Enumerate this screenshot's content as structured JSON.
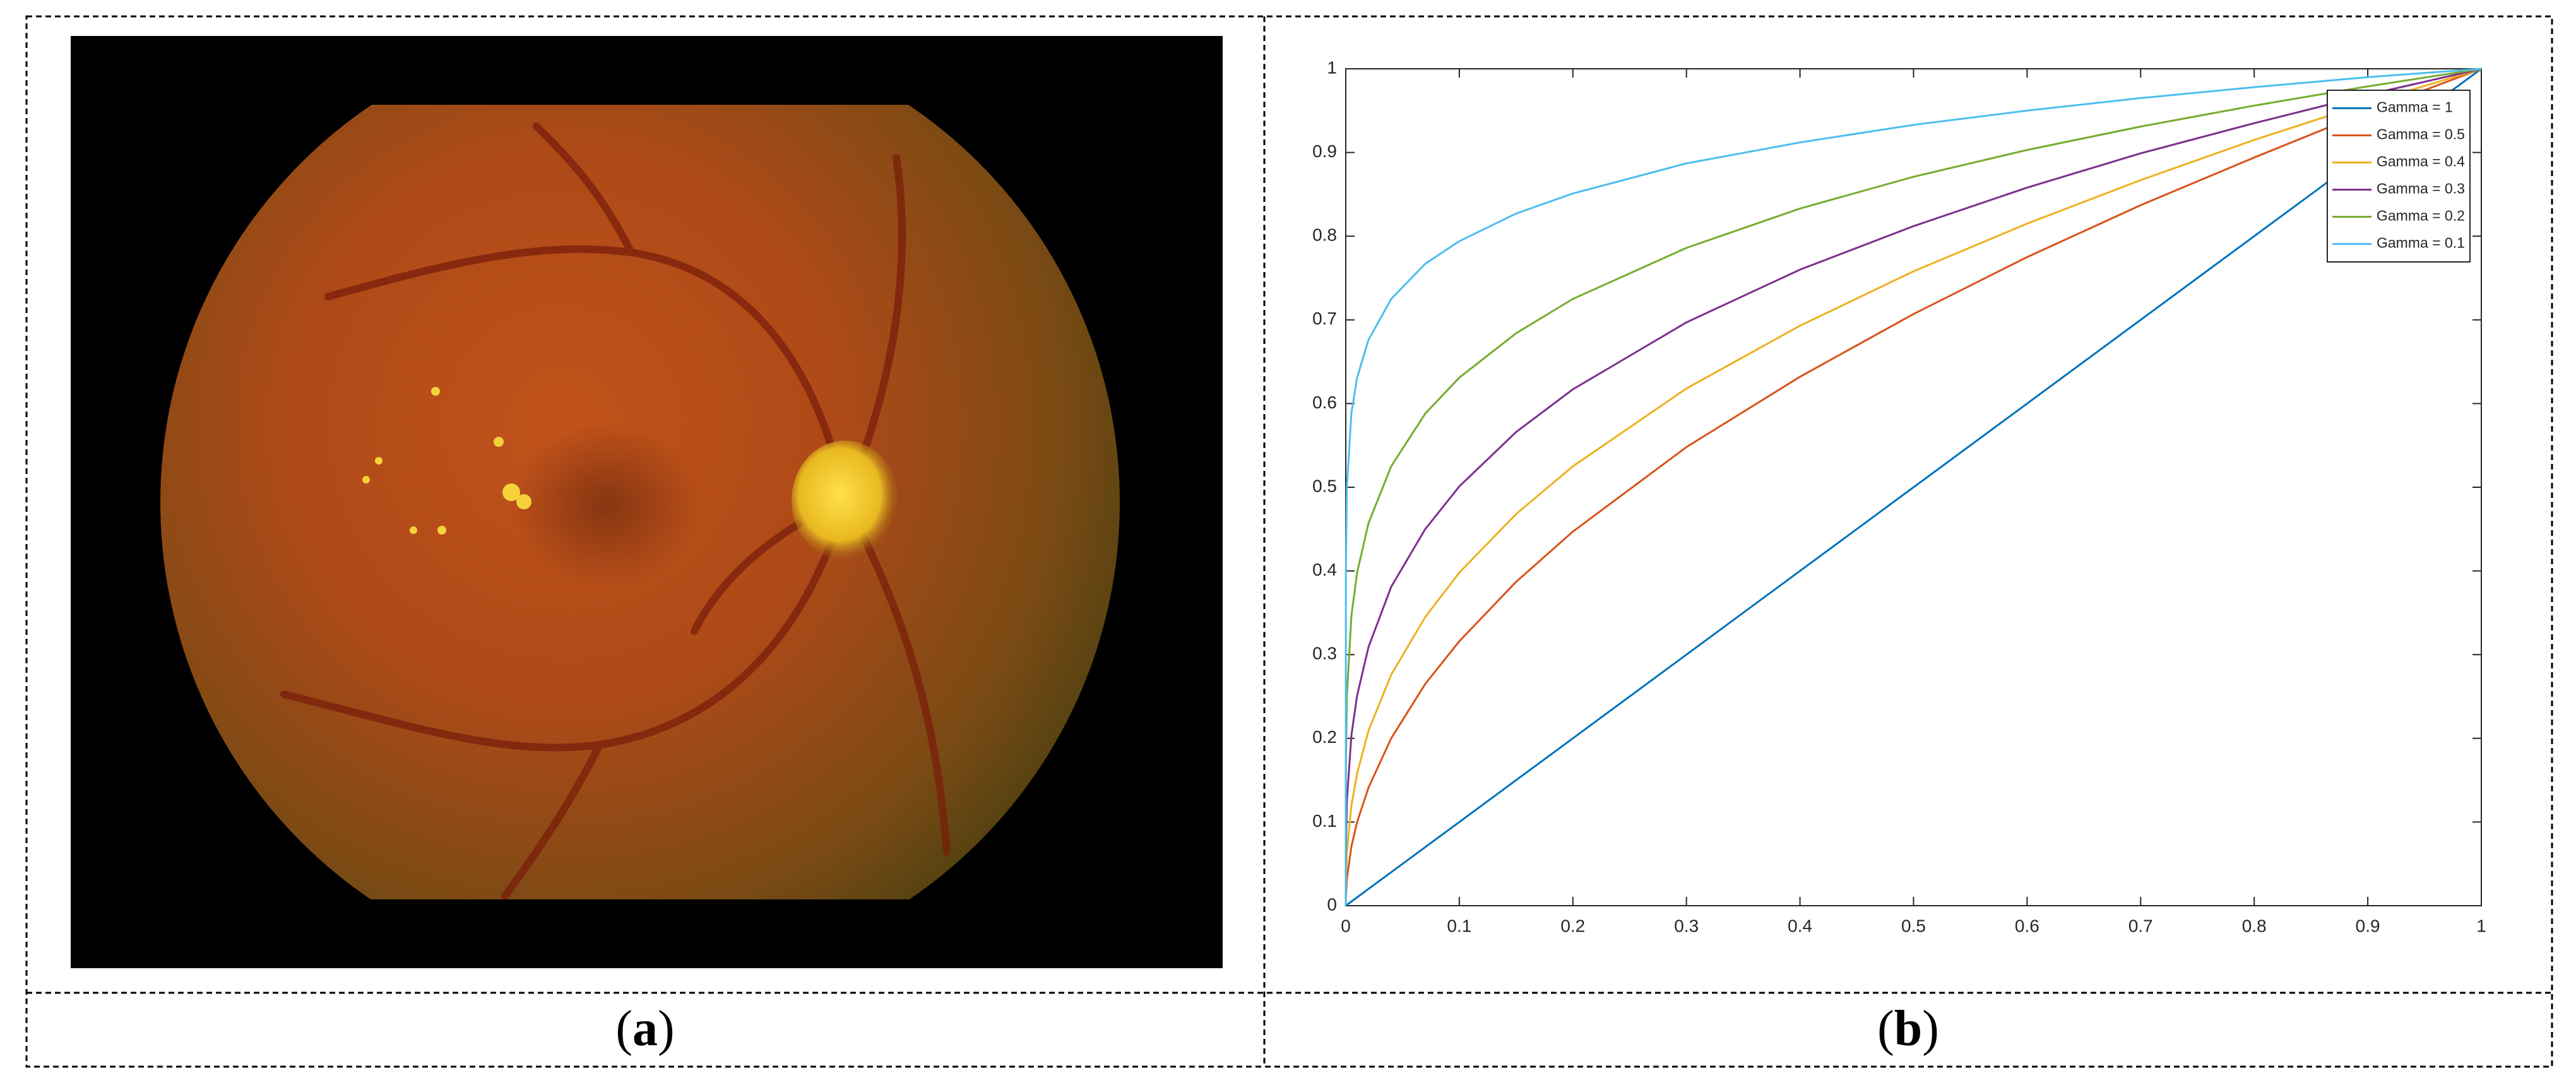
{
  "captions": {
    "a": {
      "open": "(",
      "letter": "a",
      "close": ")"
    },
    "b": {
      "open": "(",
      "letter": "b",
      "close": ")"
    }
  },
  "chart_data": {
    "type": "line",
    "x": [
      0,
      0.0001,
      0.001,
      0.005,
      0.01,
      0.02,
      0.04,
      0.07,
      0.1,
      0.15,
      0.2,
      0.3,
      0.4,
      0.5,
      0.6,
      0.7,
      0.8,
      0.9,
      1
    ],
    "series": [
      {
        "name": "Gamma = 1",
        "color": "#0072BD",
        "values": [
          0,
          0.0001,
          0.001,
          0.005,
          0.01,
          0.02,
          0.04,
          0.07,
          0.1,
          0.15,
          0.2,
          0.3,
          0.4,
          0.5,
          0.6,
          0.7,
          0.8,
          0.9,
          1
        ]
      },
      {
        "name": "Gamma = 0.5",
        "color": "#D95319",
        "values": [
          0,
          0.01,
          0.032,
          0.071,
          0.1,
          0.141,
          0.2,
          0.265,
          0.316,
          0.387,
          0.447,
          0.548,
          0.632,
          0.707,
          0.775,
          0.837,
          0.894,
          0.949,
          1
        ]
      },
      {
        "name": "Gamma = 0.4",
        "color": "#EDB120",
        "values": [
          0,
          0.025,
          0.063,
          0.12,
          0.158,
          0.209,
          0.276,
          0.345,
          0.398,
          0.468,
          0.525,
          0.618,
          0.693,
          0.758,
          0.815,
          0.867,
          0.915,
          0.959,
          1
        ]
      },
      {
        "name": "Gamma = 0.3",
        "color": "#7E2F8E",
        "values": [
          0,
          0.063,
          0.126,
          0.204,
          0.251,
          0.309,
          0.381,
          0.45,
          0.501,
          0.566,
          0.617,
          0.697,
          0.76,
          0.812,
          0.858,
          0.899,
          0.935,
          0.969,
          1
        ]
      },
      {
        "name": "Gamma = 0.2",
        "color": "#77AC30",
        "values": [
          0,
          0.158,
          0.251,
          0.347,
          0.398,
          0.457,
          0.525,
          0.588,
          0.631,
          0.684,
          0.725,
          0.786,
          0.833,
          0.871,
          0.903,
          0.931,
          0.956,
          0.979,
          1
        ]
      },
      {
        "name": "Gamma = 0.1",
        "color": "#4DBEEE",
        "values": [
          0,
          0.398,
          0.501,
          0.589,
          0.631,
          0.676,
          0.725,
          0.767,
          0.794,
          0.827,
          0.851,
          0.887,
          0.912,
          0.933,
          0.95,
          0.965,
          0.978,
          0.99,
          1
        ]
      }
    ],
    "xlim": [
      0,
      1
    ],
    "ylim": [
      0,
      1
    ],
    "xticks": [
      0,
      0.1,
      0.2,
      0.3,
      0.4,
      0.5,
      0.6,
      0.7,
      0.8,
      0.9,
      1
    ],
    "yticks": [
      0,
      0.1,
      0.2,
      0.3,
      0.4,
      0.5,
      0.6,
      0.7,
      0.8,
      0.9,
      1
    ],
    "legend": "northeast"
  }
}
